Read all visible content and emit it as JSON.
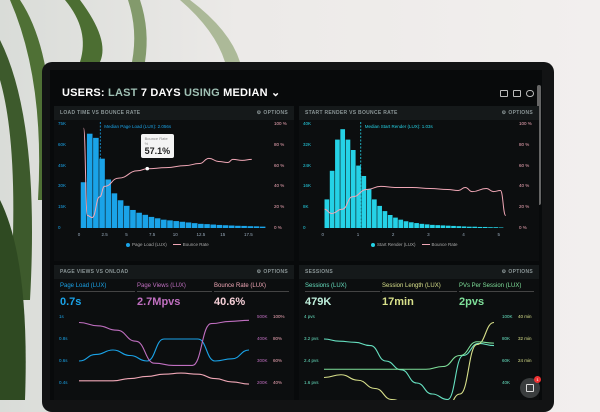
{
  "header": {
    "title_prefix": "USERS:",
    "title_mid1": "LAST",
    "title_bold1": "7 DAYS",
    "title_mid2": "USING",
    "title_bold2": "MEDIAN",
    "toolbar_icons": [
      "monitor-icon",
      "image-icon",
      "help-icon"
    ]
  },
  "options_label": "OPTIONS",
  "chat": {
    "badge": "1"
  },
  "colors": {
    "blue": "#1aa3e8",
    "cyan": "#25d2e6",
    "pink": "#f0a7b6",
    "purple": "#c06fc0",
    "teal": "#66e0c0",
    "yellow": "#d8e08a",
    "green": "#7fe09a"
  },
  "chart_data": [
    {
      "id": "load",
      "type": "bar",
      "title": "LOAD TIME VS BOUNCE RATE",
      "annotation": "Median Page Load (LUX): 2.056s",
      "median": 2.056,
      "tooltip": {
        "label": "Bounce Rate",
        "sub": "%",
        "value": "57.1%"
      },
      "yleft_ticks": [
        "75K",
        "60K",
        "45K",
        "30K",
        "15K",
        "0"
      ],
      "yleft_range": [
        0,
        75
      ],
      "yright_ticks": [
        "100 %",
        "80 %",
        "60 %",
        "40 %",
        "20 %",
        "0 %"
      ],
      "x_ticks": [
        "0",
        "2.5",
        "5",
        "7.5",
        "10",
        "12.5",
        "15",
        "17.5"
      ],
      "xlim": [
        -0.5,
        19.5
      ],
      "legend": [
        "Page Load (LUX)",
        "Bounce Rate"
      ],
      "bin_width": 0.65,
      "bars": [
        33,
        68,
        65,
        50,
        35,
        25,
        20,
        16,
        13,
        11,
        9.5,
        8,
        7,
        6,
        5.5,
        5,
        4.5,
        4,
        3.5,
        3,
        2.8,
        2.5,
        2.2,
        2,
        1.8,
        1.6,
        1.5,
        1.3,
        1.2,
        1
      ],
      "bounce": [
        [
          0.3,
          96
        ],
        [
          0.7,
          12
        ],
        [
          1.2,
          10
        ],
        [
          2,
          30
        ],
        [
          2.5,
          40
        ],
        [
          4,
          48
        ],
        [
          6,
          55
        ],
        [
          7,
          57
        ],
        [
          9,
          58
        ],
        [
          11,
          60
        ],
        [
          12.5,
          62
        ],
        [
          13.5,
          67
        ],
        [
          14.5,
          64
        ],
        [
          15.5,
          63
        ],
        [
          16,
          66
        ],
        [
          17,
          65
        ],
        [
          18,
          66
        ]
      ]
    },
    {
      "id": "render",
      "type": "bar",
      "title": "START RENDER VS BOUNCE RATE",
      "annotation": "Median Start Render (LUX): 1.03s",
      "median": 1.03,
      "yleft_ticks": [
        "40K",
        "32K",
        "24K",
        "16K",
        "8K",
        "0"
      ],
      "yleft_range": [
        0,
        40
      ],
      "yright_ticks": [
        "100 %",
        "80 %",
        "60 %",
        "40 %",
        "20 %",
        "0 %"
      ],
      "x_ticks": [
        "0",
        "1",
        "2",
        "3",
        "4",
        "5"
      ],
      "xlim": [
        -0.1,
        5.3
      ],
      "legend": [
        "Start Render (LUX)",
        "Bounce Rate"
      ],
      "bin_width": 0.15,
      "bars": [
        11,
        22,
        34,
        38,
        34,
        30,
        24,
        20,
        15,
        11,
        8.5,
        6.5,
        5,
        4,
        3.2,
        2.6,
        2.2,
        1.9,
        1.6,
        1.4,
        1.2,
        1.1,
        1,
        0.9,
        0.8,
        0.7,
        0.6,
        0.5,
        0.5,
        0.4,
        0.4,
        0.3,
        0.3,
        0.2
      ],
      "bounce": [
        [
          0,
          18
        ],
        [
          0.2,
          14
        ],
        [
          0.5,
          18
        ],
        [
          0.8,
          30
        ],
        [
          1.2,
          37
        ],
        [
          1.6,
          40
        ],
        [
          2,
          39
        ],
        [
          2.5,
          39
        ],
        [
          3,
          38
        ],
        [
          3.5,
          37
        ],
        [
          3.8,
          36
        ],
        [
          4,
          39
        ],
        [
          4.2,
          35
        ],
        [
          4.6,
          38
        ],
        [
          4.8,
          35
        ],
        [
          5,
          36
        ],
        [
          5.15,
          12
        ]
      ]
    },
    {
      "id": "pageviews",
      "type": "line",
      "title": "PAGE VIEWS VS ONLOAD",
      "metrics": [
        {
          "label": "Page Load (LUX)",
          "value": "0.7s"
        },
        {
          "label": "Page Views (LUX)",
          "value": "2.7Mpvs"
        },
        {
          "label": "Bounce Rate (LUX)",
          "value": "40.6%"
        }
      ],
      "yleft_ticks": [
        "1s",
        "0.8s",
        "0.6s",
        "0.4s"
      ],
      "yright1_ticks": [
        "500K",
        "400K",
        "300K",
        "200K"
      ],
      "yright2_ticks": [
        "100%",
        "80%",
        "60%",
        "40%"
      ],
      "series": [
        {
          "name": "Page Load (LUX)",
          "range": [
            0.4,
            1
          ],
          "values": [
            0.6,
            0.66,
            0.7,
            0.65,
            0.6,
            0.8,
            0.8,
            0.8,
            0.6,
            0.62,
            0.7
          ]
        },
        {
          "name": "Page Views (LUX)",
          "range": [
            200,
            500
          ],
          "values": [
            475,
            460,
            440,
            390,
            290,
            280,
            280,
            470,
            480,
            485
          ]
        },
        {
          "name": "Bounce Rate (LUX)",
          "range": [
            40,
            100
          ],
          "values": [
            42,
            42,
            42,
            44,
            46,
            48,
            49,
            48,
            44,
            41,
            39
          ]
        }
      ]
    },
    {
      "id": "sessions",
      "type": "line",
      "title": "SESSIONS",
      "metrics": [
        {
          "label": "Sessions (LUX)",
          "value": "479K"
        },
        {
          "label": "Session Length (LUX)",
          "value": "17min"
        },
        {
          "label": "PVs Per Session (LUX)",
          "value": "2pvs"
        }
      ],
      "yleft_ticks": [
        "4 pvs",
        "3.2 pvs",
        "2.4 pvs",
        "1.6 pvs"
      ],
      "yright1_ticks": [
        "100K",
        "80K",
        "60K",
        "40K"
      ],
      "yright2_ticks": [
        "40 min",
        "32 min",
        "24 min",
        ""
      ],
      "series": [
        {
          "name": "Sessions (LUX)",
          "range": [
            40,
            100
          ],
          "values": [
            80,
            78,
            77,
            74,
            60,
            52,
            40,
            30,
            25,
            65,
            76,
            74
          ]
        },
        {
          "name": "Session Length (LUX)",
          "range": [
            16,
            40
          ],
          "values": [
            18,
            19,
            17,
            14,
            10,
            8,
            6,
            4,
            12,
            30,
            38
          ]
        },
        {
          "name": "PVs Per Session (LUX)",
          "range": [
            1.6,
            4
          ],
          "values": [
            2.1,
            2.1,
            2.1,
            2.1,
            2.1,
            2.1,
            2.1,
            2.2,
            2.6,
            3.1,
            3.05
          ]
        }
      ]
    }
  ]
}
